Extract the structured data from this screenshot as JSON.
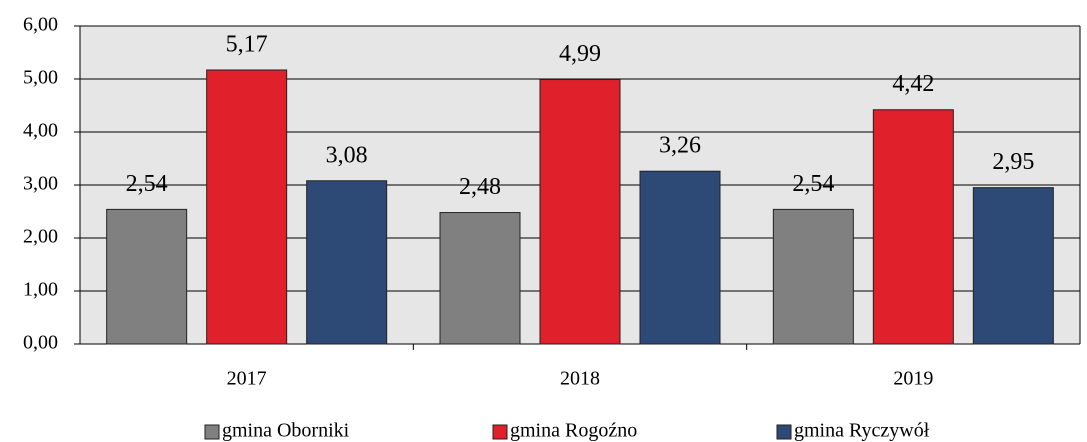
{
  "chart_data": {
    "type": "bar",
    "categories": [
      "2017",
      "2018",
      "2019"
    ],
    "series": [
      {
        "name": "gmina Oborniki",
        "color": "#808080",
        "values": [
          2.54,
          2.48,
          2.54
        ],
        "value_labels": [
          "2,54",
          "2,48",
          "2,54"
        ]
      },
      {
        "name": "gmina Rogoźno",
        "color": "#e0202a",
        "values": [
          5.17,
          4.99,
          4.42
        ],
        "value_labels": [
          "5,17",
          "4,99",
          "4,42"
        ]
      },
      {
        "name": "gmina Ryczywół",
        "color": "#2d4a76",
        "values": [
          3.08,
          3.26,
          2.95
        ],
        "value_labels": [
          "3,08",
          "3,26",
          "2,95"
        ]
      }
    ],
    "ylim": [
      0,
      6
    ],
    "yticks": [
      {
        "value": 0,
        "label": "0,00"
      },
      {
        "value": 1,
        "label": "1,00"
      },
      {
        "value": 2,
        "label": "2,00"
      },
      {
        "value": 3,
        "label": "3,00"
      },
      {
        "value": 4,
        "label": "4,00"
      },
      {
        "value": 5,
        "label": "5,00"
      },
      {
        "value": 6,
        "label": "6,00"
      }
    ],
    "grid": true,
    "legend": "bottom"
  }
}
